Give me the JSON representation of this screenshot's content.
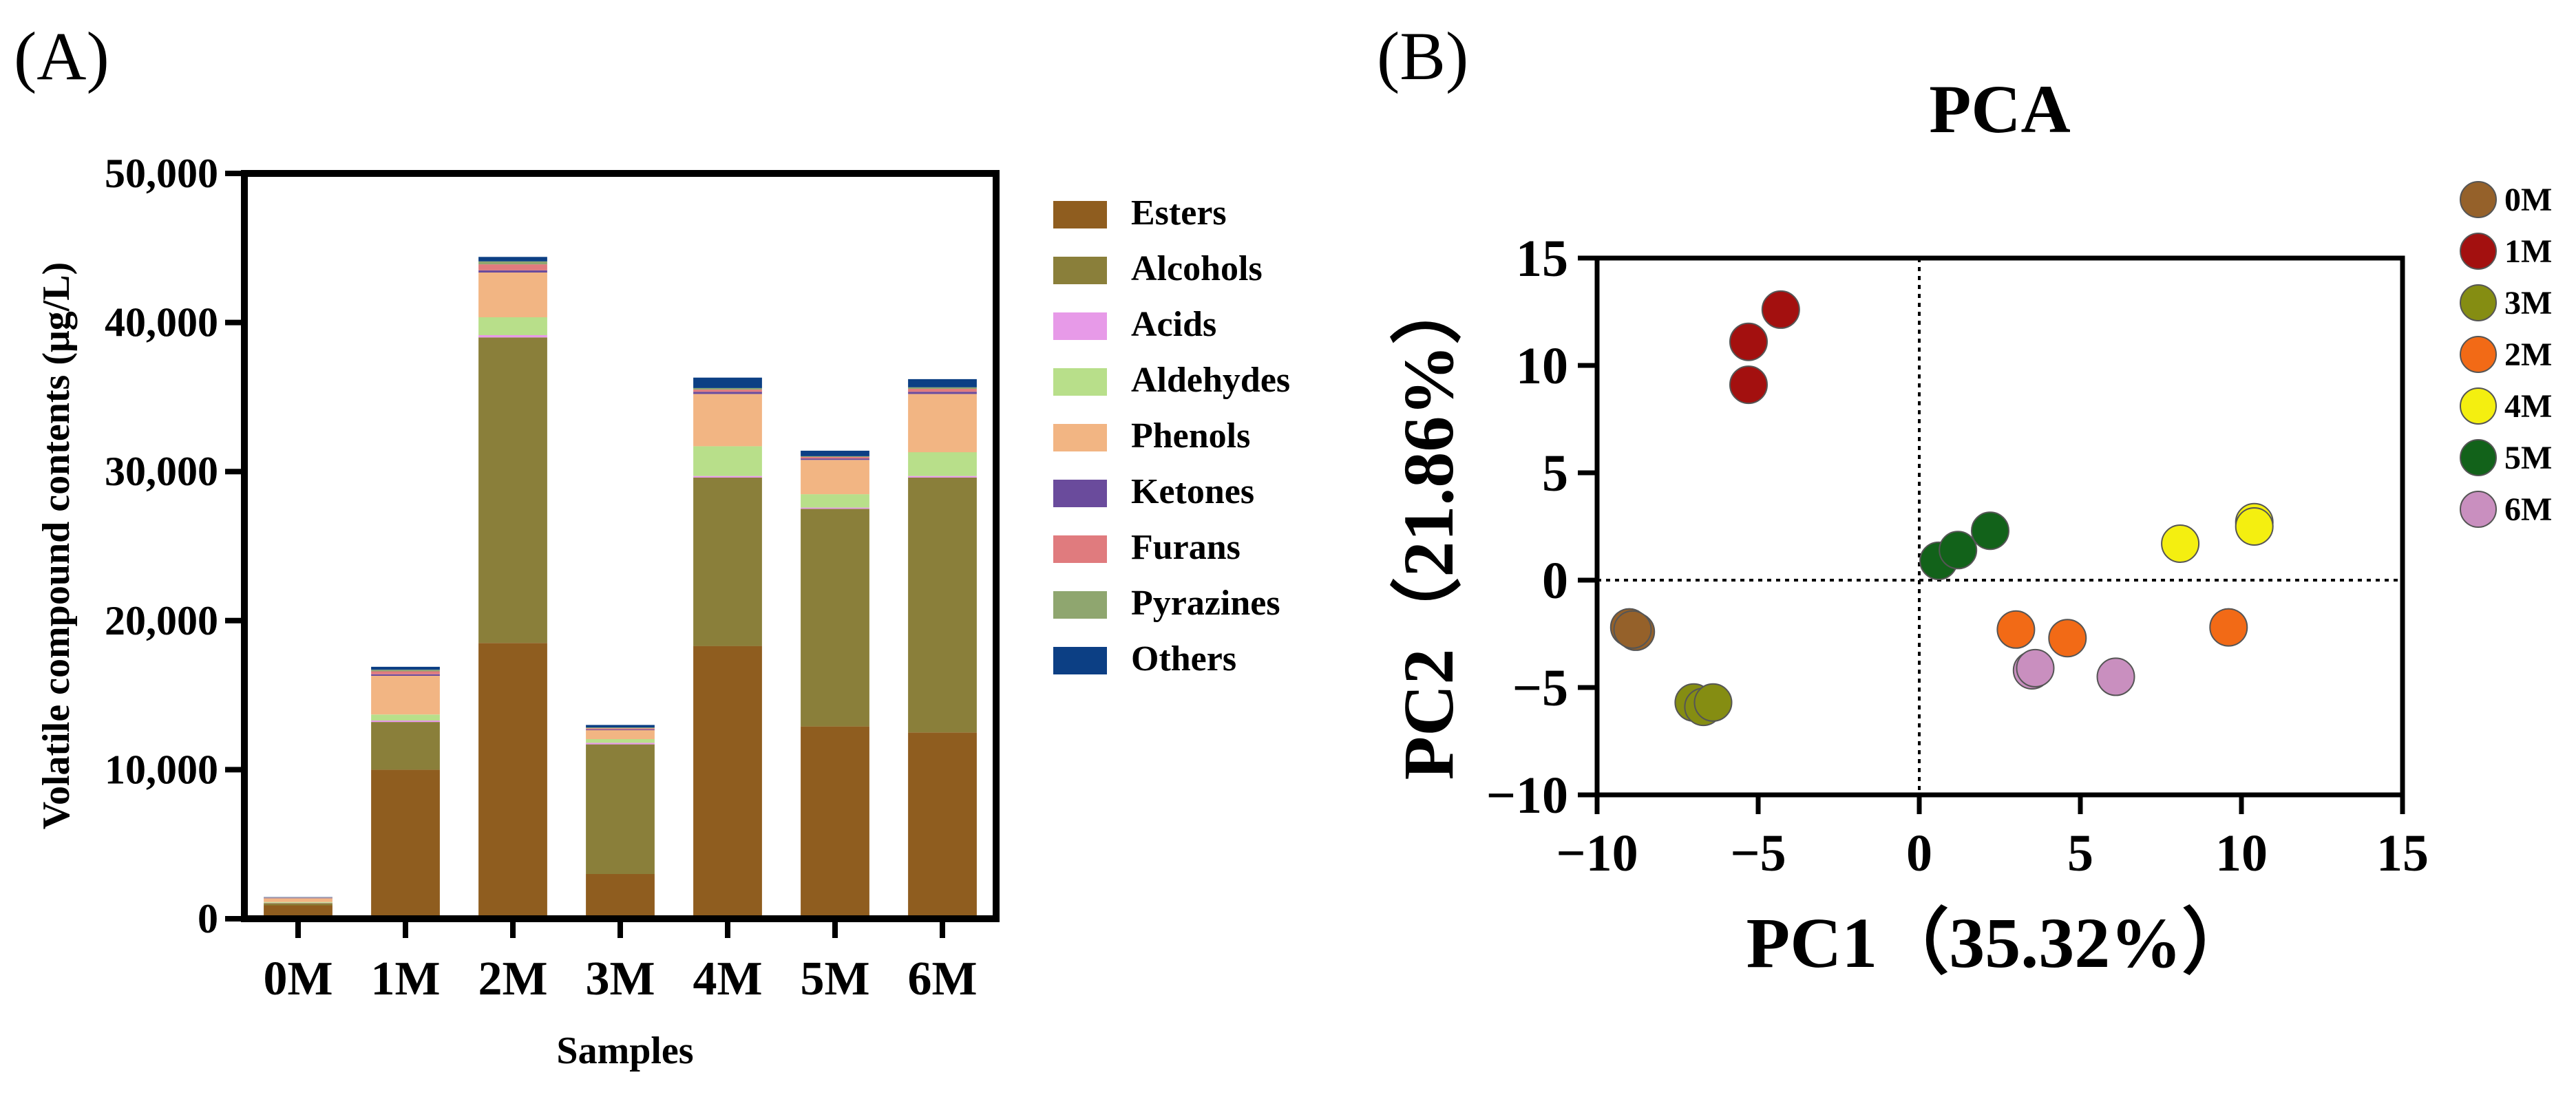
{
  "panels": {
    "a": {
      "label": "(A)"
    },
    "b": {
      "label": "(B)"
    }
  },
  "chart_data": [
    {
      "type": "bar",
      "stacked": true,
      "title": "",
      "xlabel": "Samples",
      "ylabel": "Volatile compound contents (μg/L)",
      "ylim": [
        0,
        50000
      ],
      "yticks": [
        0,
        10000,
        20000,
        30000,
        40000,
        50000
      ],
      "ytick_labels": [
        "0",
        "10,000",
        "20,000",
        "30,000",
        "40,000",
        "50,000"
      ],
      "grid": false,
      "legend_position": "right",
      "categories": [
        "0M",
        "1M",
        "2M",
        "3M",
        "4M",
        "5M",
        "6M"
      ],
      "series": [
        {
          "name": "Esters",
          "color": "#8f5d1f",
          "values": [
            900,
            10000,
            18500,
            3000,
            18300,
            12900,
            12500
          ]
        },
        {
          "name": "Alcohols",
          "color": "#8a7f3a",
          "values": [
            150,
            3200,
            20500,
            8700,
            11300,
            14600,
            17100
          ]
        },
        {
          "name": "Acids",
          "color": "#e79ae8",
          "values": [
            20,
            100,
            150,
            100,
            100,
            80,
            100
          ]
        },
        {
          "name": "Aldehydes",
          "color": "#b8df8a",
          "values": [
            50,
            400,
            1200,
            250,
            2000,
            900,
            1600
          ]
        },
        {
          "name": "Phenols",
          "color": "#f2b583",
          "values": [
            250,
            2600,
            3000,
            600,
            3500,
            2300,
            3900
          ]
        },
        {
          "name": "Ketones",
          "color": "#6a4b9c",
          "values": [
            20,
            100,
            150,
            50,
            150,
            100,
            150
          ]
        },
        {
          "name": "Furans",
          "color": "#e07b7e",
          "values": [
            20,
            200,
            400,
            80,
            150,
            100,
            200
          ]
        },
        {
          "name": "Pyrazines",
          "color": "#8fa66f",
          "values": [
            10,
            100,
            200,
            50,
            100,
            50,
            100
          ]
        },
        {
          "name": "Others",
          "color": "#0c3f84",
          "values": [
            30,
            200,
            300,
            170,
            700,
            370,
            550
          ]
        }
      ]
    },
    {
      "type": "scatter",
      "title": "PCA",
      "xlabel": "PC1（35.32%）",
      "ylabel": "PC2（21.86%）",
      "xlim": [
        -10,
        15
      ],
      "ylim": [
        -10,
        15
      ],
      "xticks": [
        -10,
        -5,
        0,
        5,
        10,
        15
      ],
      "yticks": [
        -10,
        -5,
        0,
        5,
        10,
        15
      ],
      "xtick_labels": [
        "−10",
        "−5",
        "0",
        "5",
        "10",
        "15"
      ],
      "ytick_labels": [
        "−10",
        "−5",
        "0",
        "5",
        "10",
        "15"
      ],
      "zero_lines": true,
      "grid": false,
      "legend_position": "right",
      "series": [
        {
          "name": "0M",
          "color": "#95612a",
          "points": [
            [
              -9.0,
              -2.2
            ],
            [
              -8.8,
              -2.4
            ],
            [
              -8.9,
              -2.3
            ]
          ]
        },
        {
          "name": "1M",
          "color": "#a3100f",
          "points": [
            [
              -4.3,
              12.6
            ],
            [
              -5.3,
              11.1
            ],
            [
              -5.3,
              9.1
            ]
          ]
        },
        {
          "name": "3M",
          "color": "#858d12",
          "points": [
            [
              -7.0,
              -5.7
            ],
            [
              -6.7,
              -5.9
            ],
            [
              -6.4,
              -5.7
            ]
          ]
        },
        {
          "name": "2M",
          "color": "#f26a16",
          "points": [
            [
              3.0,
              -2.3
            ],
            [
              4.6,
              -2.7
            ],
            [
              9.6,
              -2.2
            ]
          ]
        },
        {
          "name": "4M",
          "color": "#f4ef10",
          "points": [
            [
              8.1,
              1.7
            ],
            [
              10.4,
              2.7
            ],
            [
              10.4,
              2.5
            ]
          ]
        },
        {
          "name": "5M",
          "color": "#12621a",
          "points": [
            [
              0.6,
              0.9
            ],
            [
              1.2,
              1.4
            ],
            [
              2.2,
              2.3
            ]
          ]
        },
        {
          "name": "6M",
          "color": "#c98fbf",
          "points": [
            [
              3.5,
              -4.2
            ],
            [
              3.6,
              -4.1
            ],
            [
              6.1,
              -4.5
            ]
          ]
        }
      ]
    }
  ]
}
